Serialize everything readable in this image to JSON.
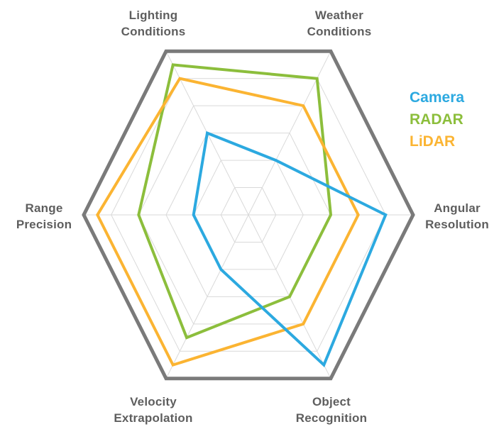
{
  "chart_data": {
    "type": "radar",
    "title": "",
    "background_color": "#ffffff",
    "axes": [
      {
        "label": "Lighting Conditions",
        "lines": [
          "Lighting",
          "Conditions"
        ],
        "angle_deg": 120
      },
      {
        "label": "Weather Conditions",
        "lines": [
          "Weather",
          "Conditions"
        ],
        "angle_deg": 60
      },
      {
        "label": "Angular Resolution",
        "lines": [
          "Angular",
          "Resolution"
        ],
        "angle_deg": 0
      },
      {
        "label": "Object Recognition",
        "lines": [
          "Object",
          "Recognition"
        ],
        "angle_deg": -60
      },
      {
        "label": "Velocity Extrapolation",
        "lines": [
          "Velocity",
          "Extrapolation"
        ],
        "angle_deg": -120
      },
      {
        "label": "Range Precision",
        "lines": [
          "Range",
          "Precision"
        ],
        "angle_deg": 180
      }
    ],
    "scale": {
      "min": 0,
      "max": 6,
      "grid_rings": 6,
      "tick_labels_shown": false
    },
    "series": [
      {
        "name": "Camera",
        "color": "#2CA9E0",
        "values": [
          3.0,
          2.0,
          5.0,
          5.5,
          2.0,
          2.0
        ]
      },
      {
        "name": "RADAR",
        "color": "#8CBE3C",
        "values": [
          5.5,
          5.0,
          3.0,
          3.0,
          4.5,
          4.0
        ]
      },
      {
        "name": "LiDAR",
        "color": "#FBB432",
        "values": [
          5.0,
          4.0,
          4.0,
          4.0,
          5.5,
          5.5
        ]
      }
    ],
    "draw_order": [
      "RADAR",
      "LiDAR",
      "Camera"
    ],
    "legend_position": "right",
    "grid": {
      "spokes": true,
      "ring_color": "#D9D9D9",
      "outer_color": "#7A7A7A",
      "ring_stroke_width": 1,
      "outer_stroke_width": 5,
      "series_stroke_width": 4
    },
    "label_color": "#5e5e5e"
  }
}
